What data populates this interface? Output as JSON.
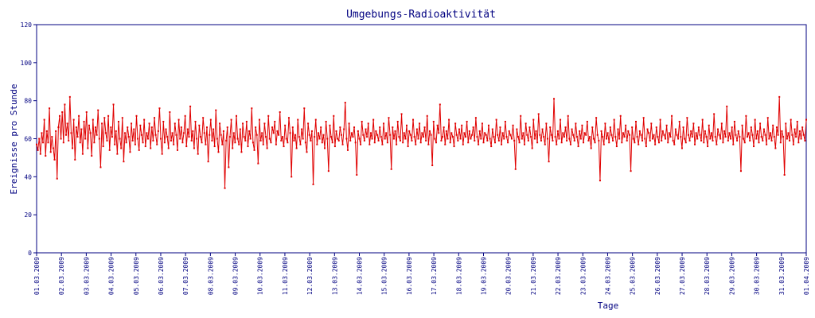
{
  "chart_data": {
    "type": "line",
    "title": "Umgebungs-Radioaktivität",
    "xlabel": "Tage",
    "ylabel": "Ereignisse pro Stunde",
    "ylim": [
      0,
      120
    ],
    "yticks": [
      "0",
      "20",
      "40",
      "60",
      "80",
      "100",
      "120"
    ],
    "xticks": [
      "01.03.2009",
      "02.03.2009",
      "03.03.2009",
      "04.03.2009",
      "05.03.2009",
      "06.03.2009",
      "07.03.2009",
      "08.03.2009",
      "09.03.2009",
      "10.03.2009",
      "11.03.2009",
      "12.03.2009",
      "13.03.2009",
      "14.03.2009",
      "15.03.2009",
      "16.03.2009",
      "17.03.2009",
      "18.03.2009",
      "19.03.2009",
      "20.03.2009",
      "21.03.2009",
      "22.03.2009",
      "23.03.2009",
      "24.03.2009",
      "25.03.2009",
      "26.03.2009",
      "27.03.2009",
      "28.03.2009",
      "29.03.2009",
      "30.03.2009",
      "31.03.2009",
      "01.04.2009"
    ],
    "grid": false,
    "legend": "none",
    "colors": {
      "line": "#e00000",
      "axis": "#000080",
      "text": "#000080"
    },
    "series": [
      {
        "values": [
          57,
          54,
          60,
          52,
          63,
          58,
          70,
          51,
          64,
          58,
          76,
          53,
          61,
          55,
          49,
          64,
          39,
          66,
          72,
          60,
          74,
          58,
          78,
          62,
          68,
          59,
          82,
          63,
          55,
          70,
          49,
          66,
          61,
          72,
          58,
          65,
          52,
          69,
          60,
          74,
          55,
          67,
          63,
          51,
          70,
          58,
          66,
          62,
          75,
          60,
          45,
          68,
          56,
          71,
          63,
          59,
          72,
          54,
          66,
          61,
          78,
          57,
          64,
          52,
          69,
          60,
          55,
          71,
          48,
          63,
          58,
          66,
          61,
          53,
          68,
          59,
          65,
          57,
          72,
          60,
          54,
          67,
          62,
          58,
          70,
          56,
          63,
          60,
          68,
          55,
          66,
          59,
          71,
          62,
          57,
          64,
          76,
          60,
          52,
          69,
          58,
          65,
          61,
          55,
          74,
          59,
          63,
          57,
          68,
          62,
          54,
          70,
          60,
          66,
          58,
          63,
          72,
          56,
          65,
          61,
          77,
          59,
          64,
          55,
          69,
          60,
          52,
          67,
          61,
          58,
          71,
          63,
          57,
          66,
          48,
          62,
          70,
          59,
          65,
          56,
          75,
          60,
          53,
          68,
          62,
          57,
          64,
          34,
          59,
          66,
          45,
          61,
          70,
          55,
          63,
          58,
          72,
          60,
          57,
          65,
          53,
          68,
          61,
          59,
          69,
          56,
          64,
          60,
          76,
          58,
          54,
          66,
          62,
          47,
          70,
          59,
          63,
          57,
          68,
          61,
          55,
          72,
          60,
          58,
          66,
          63,
          69,
          57,
          64,
          62,
          74,
          59,
          61,
          56,
          67,
          60,
          58,
          71,
          63,
          40,
          66,
          59,
          62,
          55,
          70,
          61,
          57,
          65,
          60,
          76,
          58,
          53,
          68,
          62,
          59,
          64,
          36,
          61,
          70,
          57,
          63,
          60,
          66,
          58,
          62,
          55,
          69,
          60,
          43,
          67,
          61,
          58,
          72,
          56,
          64,
          60,
          59,
          66,
          62,
          57,
          65,
          79,
          60,
          54,
          68,
          59,
          63,
          61,
          66,
          58,
          41,
          64,
          60,
          57,
          69,
          62,
          59,
          65,
          61,
          68,
          57,
          63,
          60,
          70,
          58,
          64,
          62,
          59,
          66,
          61,
          57,
          68,
          60,
          63,
          58,
          71,
          62,
          44,
          66,
          60,
          64,
          57,
          69,
          61,
          59,
          73,
          58,
          63,
          60,
          67,
          56,
          64,
          62,
          59,
          70,
          61,
          57,
          65,
          60,
          68,
          58,
          63,
          61,
          66,
          59,
          72,
          57,
          64,
          62,
          46,
          69,
          60,
          58,
          67,
          63,
          78,
          59,
          61,
          66,
          57,
          64,
          60,
          70,
          58,
          63,
          61,
          56,
          68,
          62,
          59,
          65,
          60,
          67,
          57,
          63,
          61,
          69,
          58,
          64,
          60,
          62,
          66,
          59,
          71,
          61,
          57,
          64,
          60,
          68,
          58,
          63,
          62,
          59,
          67,
          60,
          56,
          65,
          61,
          58,
          70,
          62,
          59,
          66,
          57,
          63,
          60,
          69,
          61,
          58,
          64,
          62,
          60,
          67,
          59,
          44,
          65,
          61,
          58,
          72,
          60,
          63,
          57,
          68,
          62,
          59,
          66,
          61,
          55,
          70,
          60,
          64,
          58,
          73,
          62,
          59,
          65,
          61,
          57,
          68,
          60,
          48,
          66,
          62,
          59,
          81,
          61,
          57,
          64,
          60,
          70,
          58,
          63,
          61,
          66,
          59,
          72,
          60,
          57,
          65,
          62,
          59,
          68,
          61,
          56,
          64,
          60,
          67,
          58,
          63,
          62,
          69,
          59,
          61,
          55,
          66,
          60,
          58,
          71,
          62,
          59,
          38,
          64,
          61,
          57,
          68,
          60,
          63,
          58,
          66,
          62,
          59,
          70,
          61,
          56,
          65,
          60,
          72,
          58,
          63,
          61,
          67,
          59,
          64,
          62,
          43,
          66,
          60,
          58,
          69,
          61,
          57,
          64,
          62,
          59,
          71,
          60,
          56,
          65,
          63,
          59,
          68,
          60,
          62,
          57,
          66,
          61,
          58,
          70,
          59,
          64,
          62,
          60,
          67,
          58,
          63,
          61,
          72,
          59,
          57,
          65,
          62,
          60,
          69,
          61,
          55,
          66,
          60,
          58,
          71,
          62,
          59,
          64,
          61,
          68,
          57,
          63,
          60,
          66,
          62,
          59,
          70,
          58,
          64,
          61,
          56,
          67,
          60,
          63,
          59,
          73,
          61,
          57,
          65,
          62,
          60,
          68,
          58,
          64,
          61,
          77,
          59,
          63,
          60,
          66,
          57,
          69,
          62,
          59,
          64,
          61,
          43,
          67,
          60,
          58,
          72,
          61,
          63,
          59,
          66,
          62,
          56,
          70,
          60,
          64,
          58,
          68,
          61,
          59,
          65,
          62,
          57,
          71,
          60,
          63,
          59,
          67,
          61,
          55,
          66,
          62,
          82,
          58,
          64,
          61,
          41,
          68,
          60,
          63,
          59,
          70,
          62,
          57,
          65,
          61,
          69,
          58,
          64,
          60,
          66,
          62,
          59,
          70
        ]
      }
    ]
  }
}
